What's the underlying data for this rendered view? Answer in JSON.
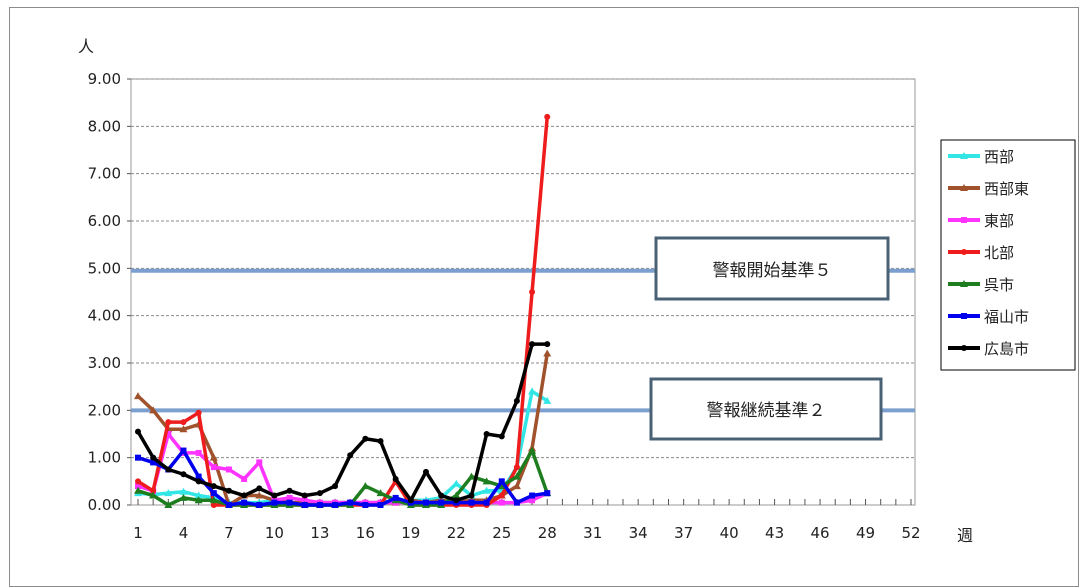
{
  "chart_data": {
    "type": "line",
    "y_unit_label": "人",
    "x_unit_label": "週",
    "ylim": [
      0,
      9
    ],
    "yticks": [
      "0.00",
      "1.00",
      "2.00",
      "3.00",
      "4.00",
      "5.00",
      "6.00",
      "7.00",
      "8.00",
      "9.00"
    ],
    "xlim": [
      1,
      52
    ],
    "xticks": [
      1,
      4,
      7,
      10,
      13,
      16,
      19,
      22,
      25,
      28,
      31,
      34,
      37,
      40,
      43,
      46,
      49,
      52
    ],
    "grid": "horizontal dashed",
    "legend_position": "right",
    "series": [
      {
        "name": "西部",
        "color": "#33e6e6",
        "marker": "triangle",
        "x": [
          1,
          2,
          3,
          4,
          5,
          6,
          7,
          8,
          9,
          10,
          11,
          12,
          13,
          14,
          15,
          16,
          17,
          18,
          19,
          20,
          21,
          22,
          23,
          24,
          25,
          26,
          27,
          28
        ],
        "values": [
          0.25,
          0.22,
          0.25,
          0.28,
          0.2,
          0.15,
          0.05,
          0.05,
          0.05,
          0.1,
          0.05,
          0.05,
          0.05,
          0.05,
          0.05,
          0.05,
          0.05,
          0.1,
          0.1,
          0.1,
          0.15,
          0.45,
          0.2,
          0.3,
          0.3,
          0.8,
          2.4,
          2.2
        ]
      },
      {
        "name": "西部東",
        "color": "#a0522d",
        "marker": "triangle",
        "x": [
          1,
          2,
          3,
          4,
          5,
          6,
          7,
          8,
          9,
          10,
          11,
          12,
          13,
          14,
          15,
          16,
          17,
          18,
          19,
          20,
          21,
          22,
          23,
          24,
          25,
          26,
          27,
          28
        ],
        "values": [
          2.3,
          2.0,
          1.6,
          1.6,
          1.7,
          1.0,
          0.0,
          0.2,
          0.2,
          0.1,
          0.05,
          0.05,
          0.05,
          0.05,
          0.05,
          0.05,
          0.05,
          0.05,
          0.1,
          0.05,
          0.1,
          0.05,
          0.1,
          0.1,
          0.2,
          0.4,
          1.2,
          3.2
        ]
      },
      {
        "name": "東部",
        "color": "#ff33ff",
        "marker": "square",
        "x": [
          1,
          2,
          3,
          4,
          5,
          6,
          7,
          8,
          9,
          10,
          11,
          12,
          13,
          14,
          15,
          16,
          17,
          18,
          19,
          20,
          21,
          22,
          23,
          24,
          25,
          26,
          27,
          28
        ],
        "values": [
          0.4,
          0.3,
          1.5,
          1.1,
          1.1,
          0.8,
          0.75,
          0.55,
          0.9,
          0.1,
          0.15,
          0.1,
          0.05,
          0.05,
          0.05,
          0.05,
          0.05,
          0.05,
          0.05,
          0.05,
          0.05,
          0.05,
          0.05,
          0.05,
          0.05,
          0.05,
          0.1,
          0.25
        ]
      },
      {
        "name": "北部",
        "color": "#ee1c1c",
        "marker": "circle",
        "x": [
          1,
          2,
          3,
          4,
          5,
          6,
          7,
          8,
          9,
          10,
          11,
          12,
          13,
          14,
          15,
          16,
          17,
          18,
          19,
          20,
          21,
          22,
          23,
          24,
          25,
          26,
          27,
          28
        ],
        "values": [
          0.5,
          0.3,
          1.75,
          1.75,
          1.95,
          0.0,
          0.0,
          0.0,
          0.0,
          0.0,
          0.0,
          0.0,
          0.0,
          0.0,
          0.0,
          0.0,
          0.0,
          0.5,
          0.0,
          0.0,
          0.0,
          0.0,
          0.0,
          0.0,
          0.2,
          0.8,
          4.5,
          8.2
        ]
      },
      {
        "name": "呉市",
        "color": "#1e7d1e",
        "marker": "triangle",
        "x": [
          1,
          2,
          3,
          4,
          5,
          6,
          7,
          8,
          9,
          10,
          11,
          12,
          13,
          14,
          15,
          16,
          17,
          18,
          19,
          20,
          21,
          22,
          23,
          24,
          25,
          26,
          27,
          28
        ],
        "values": [
          0.3,
          0.2,
          0.0,
          0.15,
          0.1,
          0.1,
          0.0,
          0.0,
          0.0,
          0.0,
          0.0,
          0.0,
          0.0,
          0.0,
          0.0,
          0.4,
          0.25,
          0.1,
          0.0,
          0.0,
          0.0,
          0.2,
          0.6,
          0.5,
          0.4,
          0.6,
          1.15,
          0.25
        ]
      },
      {
        "name": "福山市",
        "color": "#0000ee",
        "marker": "square",
        "x": [
          1,
          2,
          3,
          4,
          5,
          6,
          7,
          8,
          9,
          10,
          11,
          12,
          13,
          14,
          15,
          16,
          17,
          18,
          19,
          20,
          21,
          22,
          23,
          24,
          25,
          26,
          27,
          28
        ],
        "values": [
          1.0,
          0.9,
          0.75,
          1.15,
          0.6,
          0.25,
          0.0,
          0.05,
          0.0,
          0.05,
          0.05,
          0.0,
          0.0,
          0.0,
          0.05,
          0.0,
          0.0,
          0.15,
          0.05,
          0.05,
          0.05,
          0.05,
          0.05,
          0.05,
          0.5,
          0.05,
          0.2,
          0.25
        ]
      },
      {
        "name": "広島市",
        "color": "#000000",
        "marker": "circle",
        "x": [
          1,
          2,
          3,
          4,
          5,
          6,
          7,
          8,
          9,
          10,
          11,
          12,
          13,
          14,
          15,
          16,
          17,
          18,
          19,
          20,
          21,
          22,
          23,
          24,
          25,
          26,
          27,
          28
        ],
        "values": [
          1.55,
          1.0,
          0.75,
          0.65,
          0.5,
          0.4,
          0.3,
          0.2,
          0.35,
          0.2,
          0.3,
          0.2,
          0.25,
          0.4,
          1.05,
          1.4,
          1.35,
          0.55,
          0.1,
          0.7,
          0.2,
          0.1,
          0.2,
          1.5,
          1.45,
          2.2,
          3.4,
          3.4
        ]
      }
    ],
    "reference_lines": [
      {
        "label": "警報開始基準５",
        "y": 4.95,
        "color": "#7ba0d0"
      },
      {
        "label": "警報継続基準２",
        "y": 2.0,
        "color": "#7ba0d0"
      }
    ]
  }
}
